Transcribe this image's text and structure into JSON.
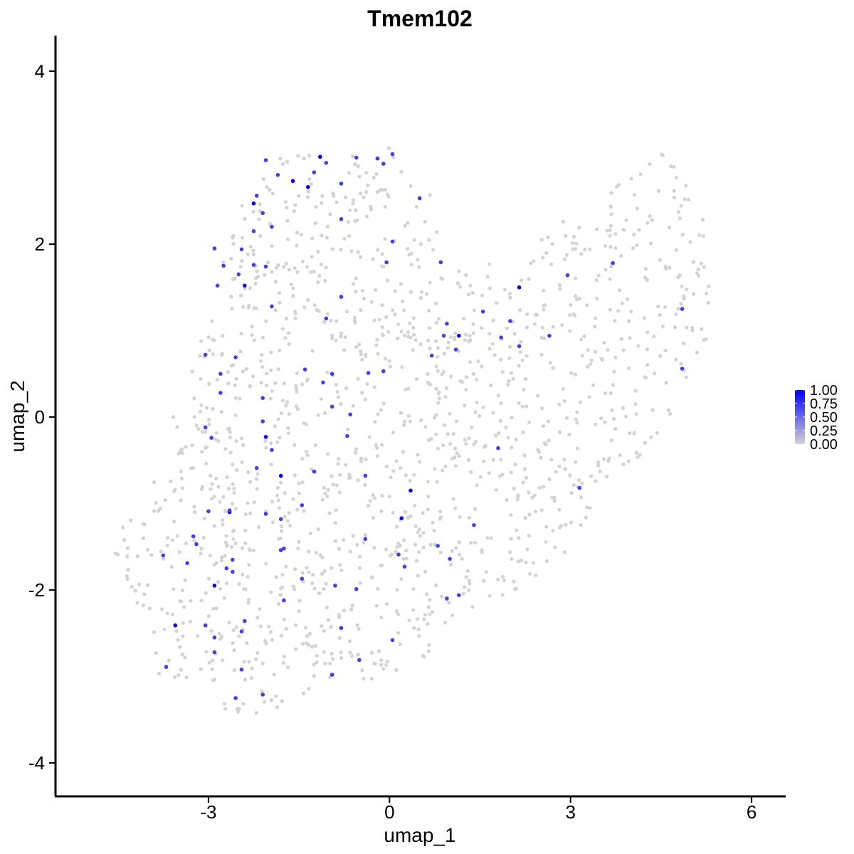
{
  "chart_data": {
    "type": "scatter",
    "title": "Tmem102",
    "xlabel": "umap_1",
    "ylabel": "umap_2",
    "xlim": [
      -5.5,
      6.6
    ],
    "ylim": [
      -4.35,
      4.4
    ],
    "x_ticks": [
      -3,
      0,
      3,
      6
    ],
    "y_ticks": [
      -4,
      -2,
      0,
      2,
      4
    ],
    "x_tick_labels": [
      "-3",
      "0",
      "3",
      "6"
    ],
    "y_tick_labels": [
      "-4",
      "-2",
      "0",
      "2",
      "4"
    ],
    "grid": false,
    "legend": {
      "placement": "right",
      "type": "colorbar",
      "labels": [
        "1.00",
        "0.75",
        "0.50",
        "0.25",
        "0.00"
      ],
      "values": [
        1.0,
        0.75,
        0.5,
        0.25,
        0.0
      ]
    },
    "colors": {
      "low": "#d3d3d3",
      "high": "#0000ff",
      "axis": "#000000"
    },
    "background_cells": {
      "color": "#d3d3d3",
      "expression": 0,
      "count": 1400,
      "extent": "dense cell cloud spanning roughly umap_1 -4.7 to 5.3 and umap_2 -3.5 to 3.1, forming a band from lower-left to upper-right"
    },
    "expressing_cells": [
      {
        "x": -1.15,
        "y": 3.01,
        "value": 1.0
      },
      {
        "x": -1.6,
        "y": 2.73,
        "value": 1.0
      },
      {
        "x": -1.35,
        "y": 2.66,
        "value": 1.0
      },
      {
        "x": -2.25,
        "y": 2.47,
        "value": 1.0
      },
      {
        "x": -2.4,
        "y": 1.52,
        "value": 1.0
      },
      {
        "x": 2.15,
        "y": 1.5,
        "value": 1.0
      },
      {
        "x": 1.15,
        "y": 0.94,
        "value": 1.0
      },
      {
        "x": -2.05,
        "y": -0.23,
        "value": 1.0
      },
      {
        "x": -1.8,
        "y": -0.68,
        "value": 1.0
      },
      {
        "x": 0.35,
        "y": -0.85,
        "value": 1.0
      },
      {
        "x": -2.65,
        "y": -1.1,
        "value": 1.0
      },
      {
        "x": 0.2,
        "y": -1.17,
        "value": 1.0
      },
      {
        "x": -2.9,
        "y": -1.95,
        "value": 1.0
      },
      {
        "x": -3.55,
        "y": -2.41,
        "value": 1.0
      },
      {
        "x": -2.05,
        "y": 2.97,
        "value": 0.7
      },
      {
        "x": -1.85,
        "y": 2.8,
        "value": 0.7
      },
      {
        "x": -1.25,
        "y": 2.83,
        "value": 0.7
      },
      {
        "x": -0.55,
        "y": 3.0,
        "value": 0.7
      },
      {
        "x": -0.2,
        "y": 2.99,
        "value": 0.7
      },
      {
        "x": 0.05,
        "y": 3.04,
        "value": 0.7
      },
      {
        "x": -0.1,
        "y": 2.93,
        "value": 0.7
      },
      {
        "x": -0.8,
        "y": 2.7,
        "value": 0.7
      },
      {
        "x": -1.05,
        "y": 2.94,
        "value": 0.7
      },
      {
        "x": -2.2,
        "y": 2.56,
        "value": 0.7
      },
      {
        "x": -2.1,
        "y": 2.36,
        "value": 0.7
      },
      {
        "x": 0.5,
        "y": 2.53,
        "value": 0.7
      },
      {
        "x": -0.8,
        "y": 2.29,
        "value": 0.7
      },
      {
        "x": -1.95,
        "y": 2.2,
        "value": 0.7
      },
      {
        "x": -2.25,
        "y": 2.15,
        "value": 0.7
      },
      {
        "x": -2.9,
        "y": 1.95,
        "value": 0.7
      },
      {
        "x": -2.45,
        "y": 1.94,
        "value": 0.7
      },
      {
        "x": 0.05,
        "y": 2.03,
        "value": 0.7
      },
      {
        "x": -2.75,
        "y": 1.75,
        "value": 0.7
      },
      {
        "x": -2.25,
        "y": 1.76,
        "value": 0.7
      },
      {
        "x": -2.05,
        "y": 1.74,
        "value": 0.7
      },
      {
        "x": -0.05,
        "y": 1.79,
        "value": 0.7
      },
      {
        "x": 0.85,
        "y": 1.79,
        "value": 0.7
      },
      {
        "x": 3.7,
        "y": 1.78,
        "value": 0.7
      },
      {
        "x": -2.5,
        "y": 1.65,
        "value": 0.7
      },
      {
        "x": 2.95,
        "y": 1.64,
        "value": 0.7
      },
      {
        "x": -2.85,
        "y": 1.52,
        "value": 0.7
      },
      {
        "x": -1.95,
        "y": 1.28,
        "value": 0.7
      },
      {
        "x": -0.8,
        "y": 1.39,
        "value": 0.7
      },
      {
        "x": 1.55,
        "y": 1.22,
        "value": 0.7
      },
      {
        "x": 4.85,
        "y": 1.25,
        "value": 0.7
      },
      {
        "x": -1.05,
        "y": 1.14,
        "value": 0.7
      },
      {
        "x": 2.0,
        "y": 1.11,
        "value": 0.7
      },
      {
        "x": 0.95,
        "y": 1.08,
        "value": 0.7
      },
      {
        "x": 2.65,
        "y": 0.94,
        "value": 0.7
      },
      {
        "x": 1.85,
        "y": 0.92,
        "value": 0.7
      },
      {
        "x": 0.9,
        "y": 0.94,
        "value": 0.7
      },
      {
        "x": 2.15,
        "y": 0.82,
        "value": 0.7
      },
      {
        "x": 1.1,
        "y": 0.78,
        "value": 0.7
      },
      {
        "x": -3.05,
        "y": 0.72,
        "value": 0.7
      },
      {
        "x": -2.55,
        "y": 0.69,
        "value": 0.7
      },
      {
        "x": 0.7,
        "y": 0.71,
        "value": 0.7
      },
      {
        "x": -1.4,
        "y": 0.55,
        "value": 0.7
      },
      {
        "x": -0.35,
        "y": 0.51,
        "value": 0.7
      },
      {
        "x": -0.1,
        "y": 0.53,
        "value": 0.7
      },
      {
        "x": -0.95,
        "y": 0.5,
        "value": 0.7
      },
      {
        "x": 4.85,
        "y": 0.56,
        "value": 0.7
      },
      {
        "x": -2.8,
        "y": 0.5,
        "value": 0.7
      },
      {
        "x": -1.1,
        "y": 0.4,
        "value": 0.7
      },
      {
        "x": -2.8,
        "y": 0.28,
        "value": 0.7
      },
      {
        "x": -2.1,
        "y": 0.22,
        "value": 0.7
      },
      {
        "x": -0.95,
        "y": 0.12,
        "value": 0.7
      },
      {
        "x": -0.65,
        "y": 0.03,
        "value": 0.7
      },
      {
        "x": -2.1,
        "y": -0.05,
        "value": 0.7
      },
      {
        "x": -3.05,
        "y": -0.12,
        "value": 0.7
      },
      {
        "x": -2.95,
        "y": -0.24,
        "value": 0.7
      },
      {
        "x": -0.7,
        "y": -0.22,
        "value": 0.7
      },
      {
        "x": 1.8,
        "y": -0.36,
        "value": 0.7
      },
      {
        "x": -1.95,
        "y": -0.38,
        "value": 0.7
      },
      {
        "x": -2.2,
        "y": -0.59,
        "value": 0.7
      },
      {
        "x": -1.25,
        "y": -0.63,
        "value": 0.7
      },
      {
        "x": -0.4,
        "y": -0.68,
        "value": 0.7
      },
      {
        "x": 3.15,
        "y": -0.82,
        "value": 0.7
      },
      {
        "x": -1.45,
        "y": -1.02,
        "value": 0.7
      },
      {
        "x": -2.65,
        "y": -1.08,
        "value": 0.7
      },
      {
        "x": -3.0,
        "y": -1.09,
        "value": 0.7
      },
      {
        "x": -2.05,
        "y": -1.12,
        "value": 0.7
      },
      {
        "x": -1.8,
        "y": -1.18,
        "value": 0.7
      },
      {
        "x": 1.4,
        "y": -1.25,
        "value": 0.7
      },
      {
        "x": -3.25,
        "y": -1.38,
        "value": 0.7
      },
      {
        "x": -0.4,
        "y": -1.41,
        "value": 0.7
      },
      {
        "x": -3.2,
        "y": -1.47,
        "value": 0.7
      },
      {
        "x": 0.8,
        "y": -1.49,
        "value": 0.7
      },
      {
        "x": -1.75,
        "y": -1.52,
        "value": 0.7
      },
      {
        "x": -1.8,
        "y": -1.54,
        "value": 0.7
      },
      {
        "x": -3.75,
        "y": -1.6,
        "value": 0.7
      },
      {
        "x": 0.15,
        "y": -1.59,
        "value": 0.7
      },
      {
        "x": 1.0,
        "y": -1.64,
        "value": 0.7
      },
      {
        "x": -2.6,
        "y": -1.65,
        "value": 0.7
      },
      {
        "x": -3.35,
        "y": -1.69,
        "value": 0.7
      },
      {
        "x": 0.25,
        "y": -1.73,
        "value": 0.7
      },
      {
        "x": -2.6,
        "y": -1.79,
        "value": 0.7
      },
      {
        "x": -2.7,
        "y": -1.75,
        "value": 0.7
      },
      {
        "x": -1.45,
        "y": -1.87,
        "value": 0.7
      },
      {
        "x": -0.9,
        "y": -1.95,
        "value": 0.7
      },
      {
        "x": -0.55,
        "y": -1.99,
        "value": 0.7
      },
      {
        "x": 1.15,
        "y": -2.06,
        "value": 0.7
      },
      {
        "x": 0.95,
        "y": -2.1,
        "value": 0.7
      },
      {
        "x": -1.75,
        "y": -2.12,
        "value": 0.7
      },
      {
        "x": -3.05,
        "y": -2.41,
        "value": 0.7
      },
      {
        "x": -2.4,
        "y": -2.36,
        "value": 0.7
      },
      {
        "x": -0.8,
        "y": -2.44,
        "value": 0.7
      },
      {
        "x": -2.45,
        "y": -2.48,
        "value": 0.7
      },
      {
        "x": -2.9,
        "y": -2.55,
        "value": 0.7
      },
      {
        "x": 0.05,
        "y": -2.58,
        "value": 0.7
      },
      {
        "x": -2.9,
        "y": -2.72,
        "value": 0.7
      },
      {
        "x": -0.5,
        "y": -2.81,
        "value": 0.7
      },
      {
        "x": -3.7,
        "y": -2.89,
        "value": 0.7
      },
      {
        "x": -2.45,
        "y": -2.92,
        "value": 0.7
      },
      {
        "x": -0.95,
        "y": -2.98,
        "value": 0.7
      },
      {
        "x": -2.1,
        "y": -3.21,
        "value": 0.7
      },
      {
        "x": -2.55,
        "y": -3.25,
        "value": 0.7
      }
    ]
  }
}
